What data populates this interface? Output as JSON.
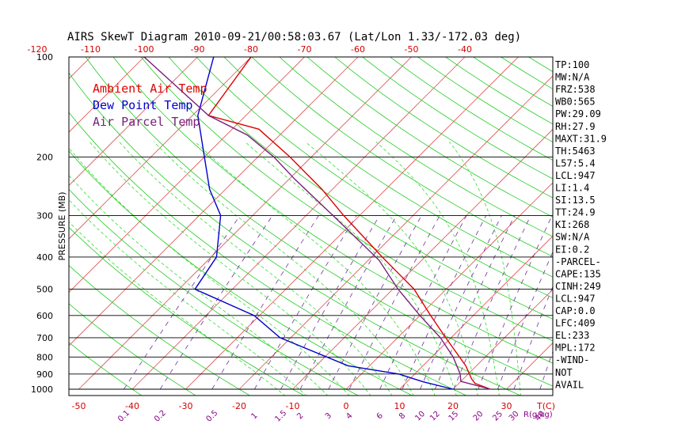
{
  "page": {
    "title": "AIRS SkewT Diagram 2010-09-21/00:58:03.67 (Lat/Lon 1.33/-172.03 deg)"
  },
  "legend": [
    {
      "label": "Ambient Air Temp",
      "color": "#e00000"
    },
    {
      "label": "Dew Point Temp",
      "color": "#0000cc"
    },
    {
      "label": "Air Parcel Temp",
      "color": "#7a1f7a"
    }
  ],
  "indices": [
    "TP:100",
    "MW:N/A",
    "FRZ:538",
    "WB0:565",
    "PW:29.09",
    "RH:27.9",
    "MAXT:31.9",
    "TH:5463",
    "L57:5.4",
    "LCL:947",
    "LI:1.4",
    "SI:13.5",
    "TT:24.9",
    "KI:268",
    "SW:N/A",
    "EI:0.2",
    "-PARCEL-",
    "CAPE:135",
    "CINH:249",
    "LCL:947",
    "CAP:0.0",
    "LFC:409",
    "EL:233",
    "MPL:172",
    "-WIND-",
    "NOT",
    "AVAIL"
  ],
  "chart_data": {
    "type": "line",
    "title": "AIRS SkewT Diagram 2010-09-21/00:58:03.67 (Lat/Lon 1.33/-172.03 deg)",
    "ylabel": "PRESSURE (MB)",
    "xlabel": "T(C)",
    "mixing_ratio_unit": "R(g/kg)",
    "y_scale": "log",
    "ylim": [
      1000,
      100
    ],
    "y_ticks": [
      100,
      200,
      300,
      400,
      500,
      600,
      700,
      800,
      900,
      1000
    ],
    "top_temp_ticks": [
      -120,
      -110,
      -100,
      -90,
      -80,
      -70,
      -60,
      -50,
      -40
    ],
    "bottom_temp_ticks": [
      -50,
      -40,
      -30,
      -20,
      -10,
      0,
      10,
      20,
      30
    ],
    "mixing_ratio_ticks": [
      0.1,
      0.2,
      0.5,
      1,
      1.5,
      2,
      3,
      4,
      6,
      8,
      10,
      12,
      15,
      20,
      25,
      30,
      40
    ],
    "series": [
      {
        "name": "Ambient Air Temp",
        "color": "#e00000",
        "points": [
          {
            "p": 1000,
            "t": 27
          },
          {
            "p": 960,
            "t": 23
          },
          {
            "p": 930,
            "t": 21.5
          },
          {
            "p": 850,
            "t": 18
          },
          {
            "p": 700,
            "t": 9
          },
          {
            "p": 600,
            "t": 2
          },
          {
            "p": 500,
            "t": -6
          },
          {
            "p": 400,
            "t": -18
          },
          {
            "p": 300,
            "t": -33
          },
          {
            "p": 250,
            "t": -42
          },
          {
            "p": 200,
            "t": -54
          },
          {
            "p": 165,
            "t": -65
          },
          {
            "p": 150,
            "t": -77
          },
          {
            "p": 100,
            "t": -80
          }
        ]
      },
      {
        "name": "Dew Point Temp",
        "color": "#0000cc",
        "points": [
          {
            "p": 1000,
            "t": 20
          },
          {
            "p": 950,
            "t": 13
          },
          {
            "p": 900,
            "t": 7
          },
          {
            "p": 850,
            "t": -4
          },
          {
            "p": 700,
            "t": -22
          },
          {
            "p": 600,
            "t": -31
          },
          {
            "p": 500,
            "t": -47
          },
          {
            "p": 400,
            "t": -49
          },
          {
            "p": 300,
            "t": -56
          },
          {
            "p": 250,
            "t": -63
          },
          {
            "p": 200,
            "t": -70
          },
          {
            "p": 150,
            "t": -79
          },
          {
            "p": 100,
            "t": -87
          }
        ]
      },
      {
        "name": "Air Parcel Temp",
        "color": "#7a1f7a",
        "points": [
          {
            "p": 1000,
            "t": 27
          },
          {
            "p": 947,
            "t": 20
          },
          {
            "p": 900,
            "t": 18.5
          },
          {
            "p": 800,
            "t": 14
          },
          {
            "p": 700,
            "t": 8
          },
          {
            "p": 600,
            "t": 0
          },
          {
            "p": 500,
            "t": -9
          },
          {
            "p": 409,
            "t": -18
          },
          {
            "p": 300,
            "t": -35
          },
          {
            "p": 233,
            "t": -49
          },
          {
            "p": 200,
            "t": -57
          },
          {
            "p": 172,
            "t": -66
          },
          {
            "p": 150,
            "t": -77
          },
          {
            "p": 100,
            "t": -100
          }
        ]
      }
    ]
  }
}
